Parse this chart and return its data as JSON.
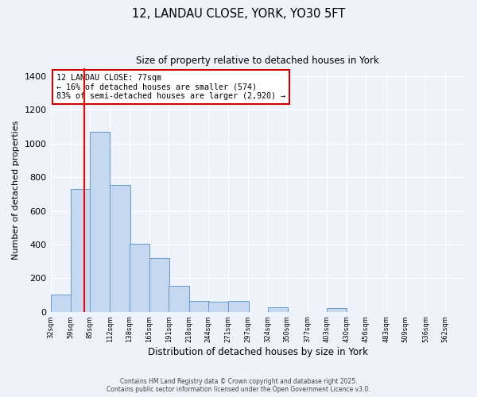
{
  "title_line1": "12, LANDAU CLOSE, YORK, YO30 5FT",
  "title_line2": "Size of property relative to detached houses in York",
  "xlabel": "Distribution of detached houses by size in York",
  "ylabel": "Number of detached properties",
  "bin_edges": [
    32,
    59,
    85,
    112,
    138,
    165,
    191,
    218,
    244,
    271,
    297,
    324,
    350,
    377,
    403,
    430,
    456,
    483,
    509,
    536,
    562
  ],
  "bar_heights": [
    100,
    730,
    1070,
    755,
    405,
    320,
    155,
    65,
    60,
    65,
    0,
    25,
    0,
    0,
    20,
    0,
    0,
    0,
    0,
    0,
    0
  ],
  "bar_color": "#c5d8f0",
  "bar_edge_color": "#6699cc",
  "red_line_x": 77,
  "annotation_text": "12 LANDAU CLOSE: 77sqm\n← 16% of detached houses are smaller (574)\n83% of semi-detached houses are larger (2,920) →",
  "annotation_box_color": "#ffffff",
  "annotation_box_edge": "#cc0000",
  "ylim": [
    0,
    1450
  ],
  "xlim_left": 32,
  "xlim_right": 589,
  "background_color": "#eef2fb",
  "grid_color": "#ffffff",
  "footer_line1": "Contains HM Land Registry data © Crown copyright and database right 2025.",
  "footer_line2": "Contains public sector information licensed under the Open Government Licence v3.0."
}
